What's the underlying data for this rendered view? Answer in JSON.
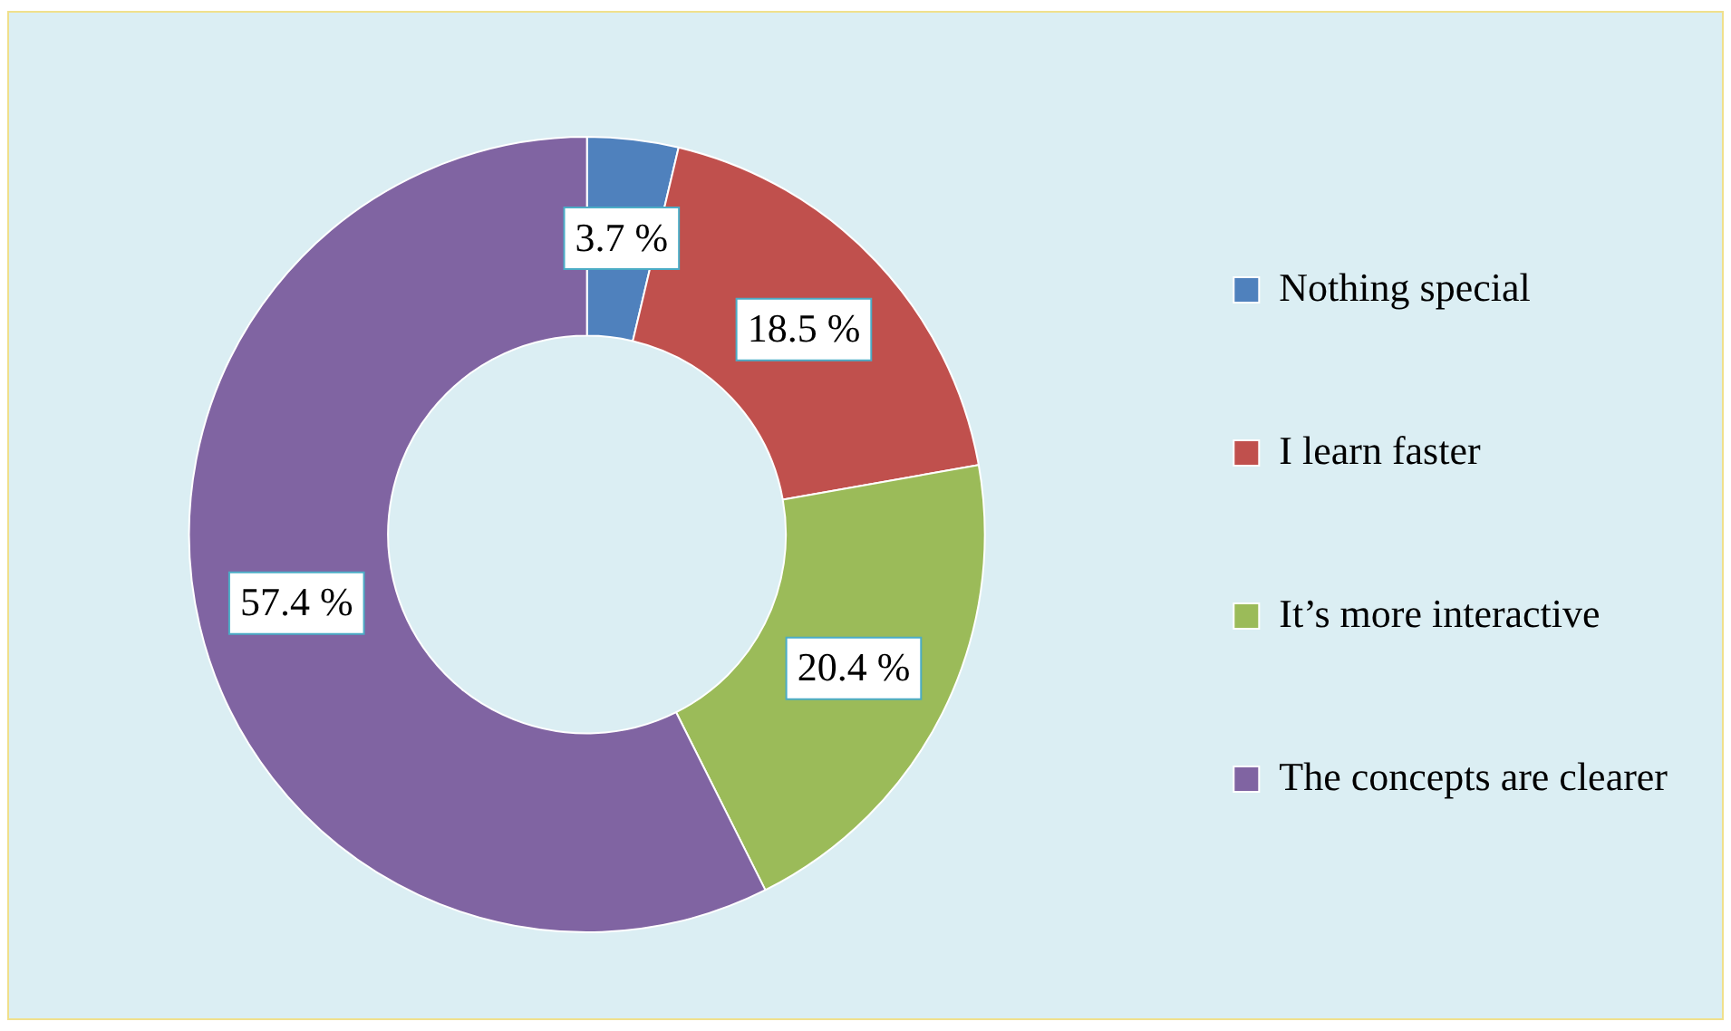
{
  "chart_data": {
    "type": "donut",
    "categories": [
      "Nothing special",
      "I learn faster",
      "It’s more interactive",
      "The concepts are clearer"
    ],
    "values": [
      3.7,
      18.5,
      20.4,
      57.4
    ],
    "colors": [
      "#4f81bd",
      "#c0504d",
      "#9bbb59",
      "#8064a2"
    ],
    "value_labels": [
      "3.7 %",
      "18.5 %",
      "20.4 %",
      "57.4 %"
    ],
    "legend": "right"
  }
}
